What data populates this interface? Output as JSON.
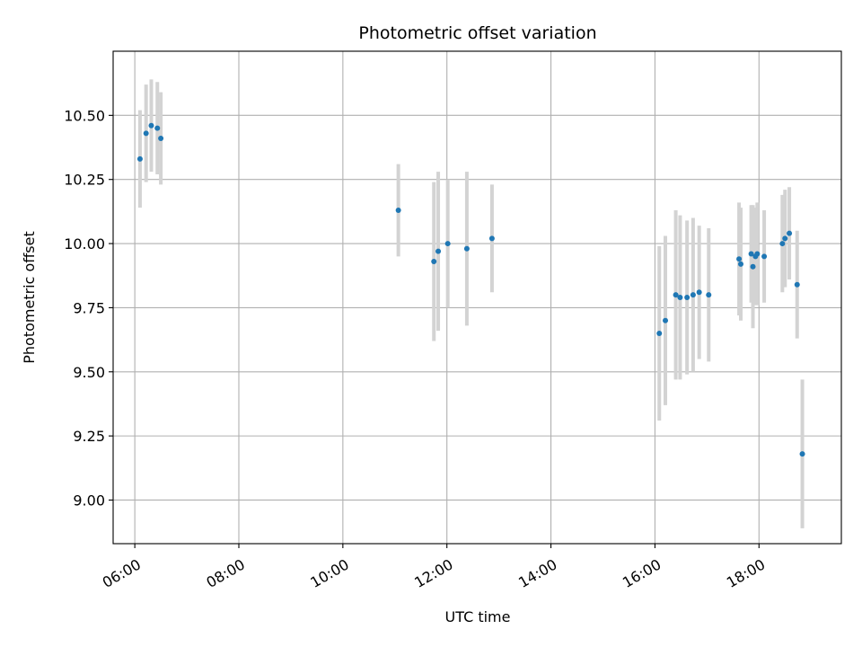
{
  "chart_data": {
    "type": "scatter",
    "title": "Photometric offset variation",
    "xlabel": "UTC time",
    "ylabel": "Photometric offset",
    "x_unit": "hours (UTC)",
    "xlim": [
      "05:35",
      "19:35"
    ],
    "ylim": [
      8.83,
      10.75
    ],
    "x_ticks": [
      "06:00",
      "08:00",
      "10:00",
      "12:00",
      "14:00",
      "16:00",
      "18:00"
    ],
    "y_ticks": [
      "9.00",
      "9.25",
      "9.50",
      "9.75",
      "10.00",
      "10.25",
      "10.50"
    ],
    "grid": true,
    "point_color": "#1f77b4",
    "errorbar_color": "#d3d3d3",
    "points": [
      {
        "x": "06:06",
        "y": 10.33,
        "err": 0.19
      },
      {
        "x": "06:13",
        "y": 10.43,
        "err": 0.19
      },
      {
        "x": "06:19",
        "y": 10.46,
        "err": 0.18
      },
      {
        "x": "06:26",
        "y": 10.45,
        "err": 0.18
      },
      {
        "x": "06:30",
        "y": 10.41,
        "err": 0.18
      },
      {
        "x": "11:04",
        "y": 10.13,
        "err": 0.18
      },
      {
        "x": "11:45",
        "y": 9.93,
        "err": 0.31
      },
      {
        "x": "11:50",
        "y": 9.97,
        "err": 0.31
      },
      {
        "x": "12:01",
        "y": 10.0,
        "err": 0.25
      },
      {
        "x": "12:23",
        "y": 9.98,
        "err": 0.3
      },
      {
        "x": "12:52",
        "y": 10.02,
        "err": 0.21
      },
      {
        "x": "16:05",
        "y": 9.65,
        "err": 0.34
      },
      {
        "x": "16:12",
        "y": 9.7,
        "err": 0.33
      },
      {
        "x": "16:24",
        "y": 9.8,
        "err": 0.33
      },
      {
        "x": "16:29",
        "y": 9.79,
        "err": 0.32
      },
      {
        "x": "16:37",
        "y": 9.79,
        "err": 0.3
      },
      {
        "x": "16:44",
        "y": 9.8,
        "err": 0.3
      },
      {
        "x": "16:51",
        "y": 9.81,
        "err": 0.26
      },
      {
        "x": "17:02",
        "y": 9.8,
        "err": 0.26
      },
      {
        "x": "17:37",
        "y": 9.94,
        "err": 0.22
      },
      {
        "x": "17:39",
        "y": 9.92,
        "err": 0.22
      },
      {
        "x": "17:51",
        "y": 9.96,
        "err": 0.19
      },
      {
        "x": "17:53",
        "y": 9.91,
        "err": 0.24
      },
      {
        "x": "17:56",
        "y": 9.95,
        "err": 0.19
      },
      {
        "x": "17:58",
        "y": 9.96,
        "err": 0.2
      },
      {
        "x": "18:06",
        "y": 9.95,
        "err": 0.18
      },
      {
        "x": "18:27",
        "y": 10.0,
        "err": 0.19
      },
      {
        "x": "18:30",
        "y": 10.02,
        "err": 0.19
      },
      {
        "x": "18:35",
        "y": 10.04,
        "err": 0.18
      },
      {
        "x": "18:44",
        "y": 9.84,
        "err": 0.21
      },
      {
        "x": "18:50",
        "y": 9.18,
        "err": 0.29
      }
    ]
  }
}
